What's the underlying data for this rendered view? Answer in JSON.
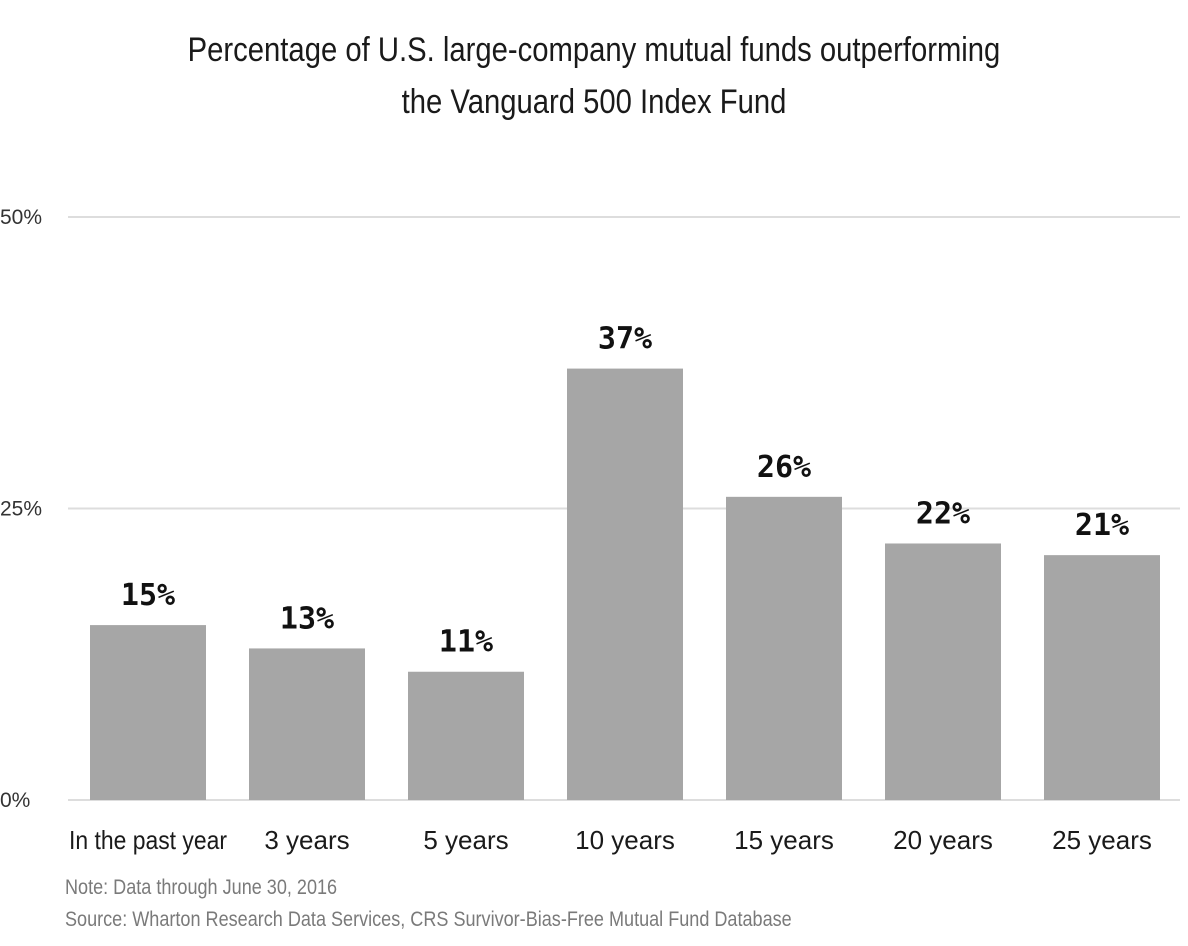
{
  "chart_data": {
    "type": "bar",
    "title_lines": [
      "Percentage of U.S. large-company mutual funds outperforming",
      "the Vanguard 500 Index Fund"
    ],
    "categories": [
      "In the past year",
      "3 years",
      "5 years",
      "10 years",
      "15 years",
      "20 years",
      "25 years"
    ],
    "values": [
      15,
      13,
      11,
      37,
      26,
      22,
      21
    ],
    "data_labels": [
      "15%",
      "13%",
      "11%",
      "37%",
      "26%",
      "22%",
      "21%"
    ],
    "ylim": [
      0,
      50
    ],
    "yticks": [
      0,
      25,
      50
    ],
    "ytick_labels": [
      "0%",
      "25%",
      "50%"
    ],
    "grid": true,
    "bar_color": "#a6a6a6",
    "grid_color": "#dddddd",
    "note": "Note: Data through June 30, 2016",
    "source": "Source: Wharton Research Data Services, CRS Survivor-Bias-Free Mutual Fund Database"
  }
}
